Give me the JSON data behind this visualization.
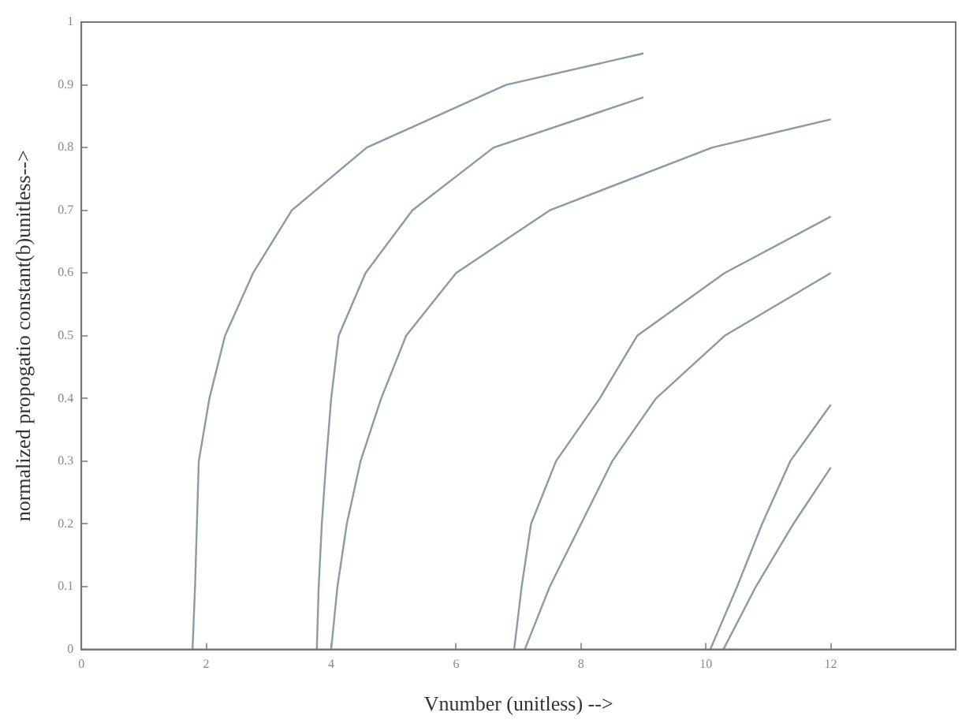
{
  "chart_data": {
    "type": "line",
    "xlabel": "Vnumber (unitless) -->",
    "ylabel": "normalized propogatio constant(b)unitless-->",
    "xlim": [
      0,
      14
    ],
    "xticks": [
      0,
      2,
      4,
      6,
      8,
      10,
      12
    ],
    "ylim": [
      0,
      1
    ],
    "yticks": [
      0,
      0.1,
      0.2,
      0.3,
      0.4,
      0.5,
      0.6,
      0.7,
      0.8,
      0.9,
      1
    ],
    "grid": false,
    "legend": false,
    "marker": "none",
    "line_style": "solid",
    "series": [
      {
        "color": "#8a9aa8",
        "x": [
          1.78,
          1.82,
          1.85,
          1.88,
          2.05,
          2.3,
          2.75,
          3.37,
          4.57,
          6.8,
          9.0
        ],
        "values": [
          0,
          0.1,
          0.2,
          0.3,
          0.4,
          0.5,
          0.6,
          0.7,
          0.8,
          0.9,
          0.95
        ]
      },
      {
        "color": "#8a9aa8",
        "x": [
          3.77,
          3.8,
          3.85,
          3.92,
          4.0,
          4.12,
          4.55,
          5.3,
          6.6,
          9.0
        ],
        "values": [
          0,
          0.1,
          0.2,
          0.3,
          0.4,
          0.5,
          0.6,
          0.7,
          0.8,
          0.88
        ]
      },
      {
        "color": "#8a9aa8",
        "x": [
          4.0,
          4.1,
          4.25,
          4.47,
          4.8,
          5.2,
          6.0,
          7.5,
          10.1,
          12.0
        ],
        "values": [
          0,
          0.1,
          0.2,
          0.3,
          0.4,
          0.5,
          0.6,
          0.7,
          0.8,
          0.845
        ]
      },
      {
        "color": "#8a9aa8",
        "x": [
          6.93,
          7.05,
          7.2,
          7.6,
          8.3,
          8.9,
          10.3,
          12.0
        ],
        "values": [
          0,
          0.1,
          0.2,
          0.3,
          0.4,
          0.5,
          0.6,
          0.69
        ]
      },
      {
        "color": "#8a9aa8",
        "x": [
          7.1,
          7.5,
          8.0,
          8.5,
          9.2,
          10.3,
          12.0
        ],
        "values": [
          0,
          0.1,
          0.2,
          0.3,
          0.4,
          0.5,
          0.6
        ]
      },
      {
        "color": "#8a9aa8",
        "x": [
          10.07,
          10.5,
          10.9,
          11.35,
          12.0
        ],
        "values": [
          0,
          0.1,
          0.2,
          0.3,
          0.39
        ]
      },
      {
        "color": "#8a9aa8",
        "x": [
          10.28,
          10.8,
          11.4,
          12.0
        ],
        "values": [
          0,
          0.1,
          0.2,
          0.29
        ]
      }
    ]
  }
}
